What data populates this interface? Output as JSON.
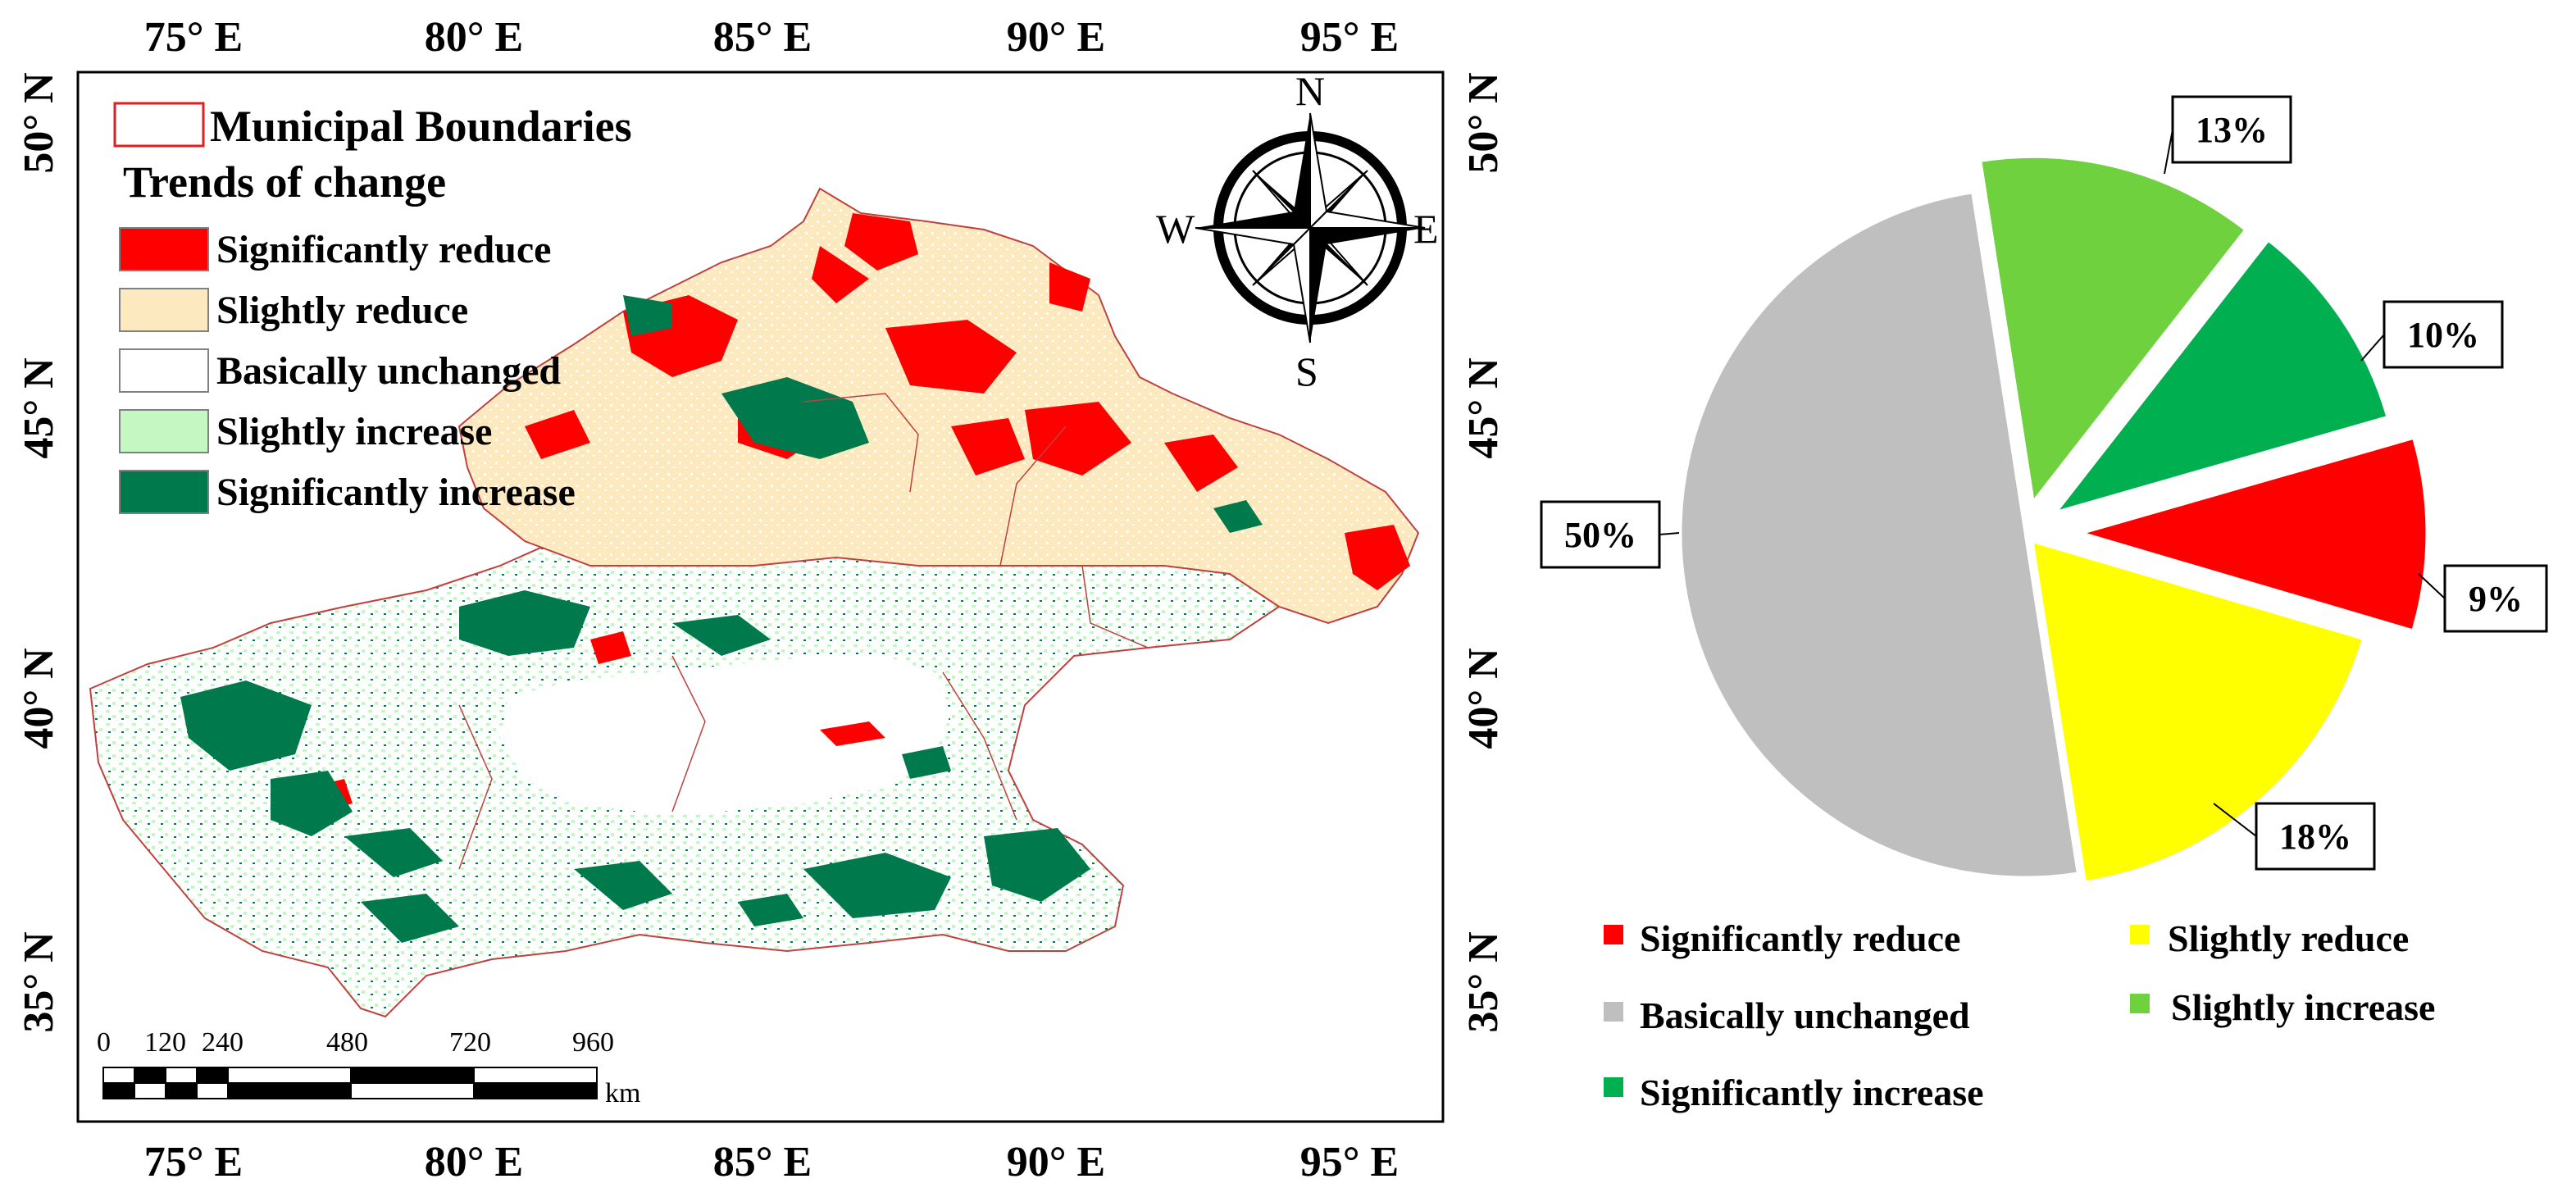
{
  "map": {
    "x_ticks": [
      "75° E",
      "80° E",
      "85° E",
      "90° E",
      "95° E"
    ],
    "y_ticks": [
      "50° N",
      "45° N",
      "40° N",
      "35° N"
    ],
    "legend": {
      "boundary_label": "Municipal Boundaries",
      "trend_title": "Trends of change",
      "items": [
        {
          "label": "Significantly reduce",
          "color": "#ff0000"
        },
        {
          "label": "Slightly reduce",
          "color": "#fde9c0"
        },
        {
          "label": "Basically unchanged",
          "color": "#ffffff"
        },
        {
          "label": "Slightly increase",
          "color": "#c4f7c1"
        },
        {
          "label": "Significantly increase",
          "color": "#007a4d"
        }
      ],
      "boundary_color": "#e02020"
    },
    "compass": {
      "n": "N",
      "s": "S",
      "e": "E",
      "w": "W"
    },
    "scale_bar": {
      "ticks": [
        "0",
        "120",
        "240",
        "480",
        "720",
        "960"
      ],
      "unit": "km"
    }
  },
  "chart_data": {
    "type": "pie",
    "exploded": true,
    "slices": [
      {
        "name": "Significantly reduce",
        "percent": 9,
        "label": "9%",
        "color": "#ff0000"
      },
      {
        "name": "Slightly reduce",
        "percent": 18,
        "label": "18%",
        "color": "#ffff00"
      },
      {
        "name": "Basically unchanged",
        "percent": 50,
        "label": "50%",
        "color": "#bfbfbf"
      },
      {
        "name": "Slightly increase",
        "percent": 13,
        "label": "13%",
        "color": "#6fd13e"
      },
      {
        "name": "Significantly increase",
        "percent": 10,
        "label": "10%",
        "color": "#00b050"
      }
    ],
    "legend": [
      {
        "label": "Significantly reduce",
        "color": "#ff0000"
      },
      {
        "label": "Slightly reduce",
        "color": "#ffff00"
      },
      {
        "label": "Basically unchanged",
        "color": "#bfbfbf"
      },
      {
        "label": "Slightly increase",
        "color": "#6fd13e"
      },
      {
        "label": "Significantly increase",
        "color": "#00b050"
      }
    ]
  }
}
